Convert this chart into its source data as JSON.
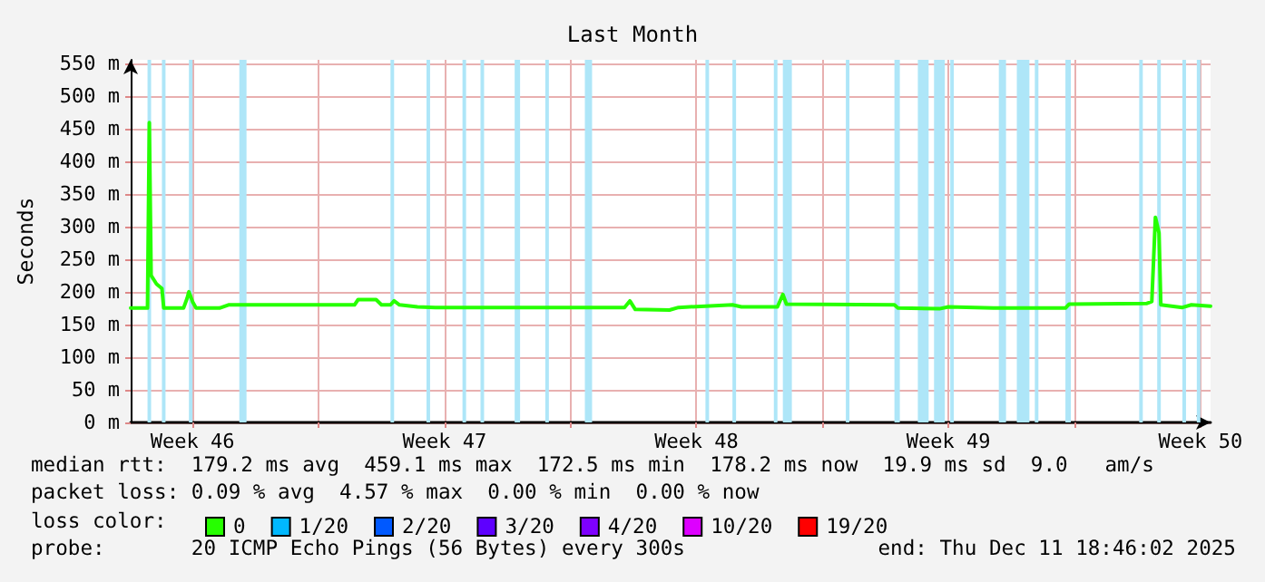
{
  "chart_data": {
    "type": "line",
    "title": "Last Month",
    "ylabel": "Seconds",
    "legend_title": "loss color:",
    "legend": "bottom",
    "grid": true,
    "xlim": [
      "2025-11-11T18:46",
      "2025-12-11T18:46"
    ],
    "xticks": [
      {
        "value": "2025-11-13T12:00",
        "label": "Week 46"
      },
      {
        "value": "2025-11-17T00:00",
        "label": null
      },
      {
        "value": "2025-11-20T12:00",
        "label": "Week 47"
      },
      {
        "value": "2025-11-24T00:00",
        "label": null
      },
      {
        "value": "2025-11-27T12:00",
        "label": "Week 48"
      },
      {
        "value": "2025-12-01T00:00",
        "label": null
      },
      {
        "value": "2025-12-04T12:00",
        "label": "Week 49"
      },
      {
        "value": "2025-12-08T00:00",
        "label": null
      },
      {
        "value": "2025-12-11T12:00",
        "label": "Week 50"
      }
    ],
    "ylim": [
      0,
      555
    ],
    "yticks": [
      {
        "value": 0,
        "label": "0 m"
      },
      {
        "value": 50,
        "label": "50 m"
      },
      {
        "value": 100,
        "label": "100 m"
      },
      {
        "value": 150,
        "label": "150 m"
      },
      {
        "value": 200,
        "label": "200 m"
      },
      {
        "value": 250,
        "label": "250 m"
      },
      {
        "value": 300,
        "label": "300 m"
      },
      {
        "value": 350,
        "label": "350 m"
      },
      {
        "value": 400,
        "label": "400 m"
      },
      {
        "value": 450,
        "label": "450 m"
      },
      {
        "value": 500,
        "label": "500 m"
      },
      {
        "value": 550,
        "label": "550 m"
      }
    ],
    "x": [
      "2025-11-11T18:46",
      "2025-11-12T06:00",
      "2025-11-12T07:12",
      "2025-11-12T08:24",
      "2025-11-12T12:00",
      "2025-11-12T15:36",
      "2025-11-12T16:48",
      "2025-11-13T06:00",
      "2025-11-13T08:24",
      "2025-11-13T09:36",
      "2025-11-13T12:00",
      "2025-11-13T14:24",
      "2025-11-14T06:00",
      "2025-11-14T12:00",
      "2025-11-18T00:00",
      "2025-11-18T02:24",
      "2025-11-18T14:24",
      "2025-11-18T18:00",
      "2025-11-19T00:00",
      "2025-11-19T02:24",
      "2025-11-19T06:00",
      "2025-11-19T18:00",
      "2025-11-20T06:00",
      "2025-11-25T12:00",
      "2025-11-25T15:36",
      "2025-11-25T19:12",
      "2025-11-26T18:00",
      "2025-11-27T00:00",
      "2025-11-27T18:00",
      "2025-11-28T12:00",
      "2025-11-28T18:00",
      "2025-11-29T18:00",
      "2025-11-29T21:36",
      "2025-11-30T00:00",
      "2025-12-03T00:00",
      "2025-12-03T02:24",
      "2025-12-04T06:00",
      "2025-12-04T12:00",
      "2025-12-05T18:00",
      "2025-12-07T18:00",
      "2025-12-07T20:24",
      "2025-12-10T00:00",
      "2025-12-10T03:36",
      "2025-12-10T06:00",
      "2025-12-10T08:24",
      "2025-12-10T09:36",
      "2025-12-11T00:00",
      "2025-12-11T06:00",
      "2025-12-11T18:46"
    ],
    "series": [
      {
        "name": "0",
        "color": "#26ff00",
        "values": [
          175,
          175,
          459,
          225,
          212,
          205,
          175,
          175,
          190,
          200,
          185,
          175,
          175,
          180,
          180,
          188,
          188,
          180,
          180,
          186,
          180,
          177,
          176,
          176,
          186,
          173,
          172,
          176,
          178,
          180,
          177,
          177,
          196,
          181,
          180,
          175,
          174,
          177,
          175,
          175,
          181,
          182,
          185,
          314,
          290,
          180,
          176,
          180,
          178
        ]
      },
      {
        "name": "1/20",
        "color": "#00b8ff",
        "values": [
          null,
          null,
          null,
          null,
          null,
          null,
          null,
          null,
          null,
          null,
          null,
          null,
          null,
          null,
          null,
          null,
          null,
          null,
          null,
          null,
          null,
          null,
          null,
          null,
          null,
          null,
          null,
          null,
          null,
          null,
          null,
          null,
          null,
          null,
          null,
          null,
          null,
          null,
          null,
          null,
          null,
          null,
          null,
          null,
          null,
          null,
          null,
          null,
          null
        ]
      },
      {
        "name": "2/20",
        "color": "#0059ff",
        "values": [
          null,
          null,
          null,
          null,
          null,
          null,
          null,
          null,
          null,
          null,
          null,
          null,
          null,
          null,
          null,
          null,
          null,
          null,
          null,
          null,
          null,
          null,
          null,
          null,
          null,
          null,
          null,
          null,
          null,
          null,
          null,
          null,
          null,
          null,
          null,
          null,
          null,
          null,
          null,
          null,
          null,
          null,
          null,
          null,
          null,
          null,
          null,
          null,
          null
        ]
      },
      {
        "name": "3/20",
        "color": "#5e00ff",
        "values": [
          null,
          null,
          null,
          null,
          null,
          null,
          null,
          null,
          null,
          null,
          null,
          null,
          null,
          null,
          null,
          null,
          null,
          null,
          null,
          null,
          null,
          null,
          null,
          null,
          null,
          null,
          null,
          null,
          null,
          null,
          null,
          null,
          null,
          null,
          null,
          null,
          null,
          null,
          null,
          null,
          null,
          null,
          null,
          null,
          null,
          null,
          null,
          null,
          null
        ]
      },
      {
        "name": "4/20",
        "color": "#7e00ff",
        "values": [
          null,
          null,
          null,
          null,
          null,
          null,
          null,
          null,
          null,
          null,
          null,
          null,
          null,
          null,
          null,
          null,
          null,
          null,
          null,
          null,
          null,
          null,
          null,
          null,
          null,
          null,
          null,
          null,
          null,
          null,
          null,
          null,
          null,
          null,
          null,
          null,
          null,
          null,
          null,
          null,
          null,
          null,
          null,
          null,
          null,
          null,
          null,
          null,
          null
        ]
      },
      {
        "name": "10/20",
        "color": "#dd00ff",
        "values": [
          null,
          null,
          null,
          null,
          null,
          null,
          null,
          null,
          null,
          null,
          null,
          null,
          null,
          null,
          null,
          null,
          null,
          null,
          null,
          null,
          null,
          null,
          null,
          null,
          null,
          null,
          null,
          null,
          null,
          null,
          null,
          null,
          null,
          null,
          null,
          null,
          null,
          null,
          null,
          null,
          null,
          null,
          null,
          null,
          null,
          null,
          null,
          null,
          null
        ]
      },
      {
        "name": "19/20",
        "color": "#ff0000",
        "values": [
          null,
          null,
          null,
          null,
          null,
          null,
          null,
          null,
          null,
          null,
          null,
          null,
          null,
          null,
          null,
          null,
          null,
          null,
          null,
          null,
          null,
          null,
          null,
          null,
          null,
          null,
          null,
          null,
          null,
          null,
          null,
          null,
          null,
          null,
          null,
          null,
          null,
          null,
          null,
          null,
          null,
          null,
          null,
          null,
          null,
          null,
          null,
          null,
          null
        ]
      }
    ],
    "bands": [
      {
        "axis": "x",
        "from": "2025-11-12T06:00",
        "to": "2025-11-12T08:24",
        "color": "#aee6f8"
      },
      {
        "axis": "x",
        "from": "2025-11-12T15:36",
        "to": "2025-11-12T18:00",
        "color": "#aee6f8"
      },
      {
        "axis": "x",
        "from": "2025-11-13T09:36",
        "to": "2025-11-13T12:00",
        "color": "#aee6f8"
      },
      {
        "axis": "x",
        "from": "2025-11-14T19:12",
        "to": "2025-11-15T00:00",
        "color": "#aee6f8"
      },
      {
        "axis": "x",
        "from": "2025-11-19T00:00",
        "to": "2025-11-19T02:24",
        "color": "#aee6f8"
      },
      {
        "axis": "x",
        "from": "2025-11-20T00:00",
        "to": "2025-11-20T02:24",
        "color": "#aee6f8"
      },
      {
        "axis": "x",
        "from": "2025-11-21T00:00",
        "to": "2025-11-21T02:24",
        "color": "#aee6f8"
      },
      {
        "axis": "x",
        "from": "2025-11-21T12:00",
        "to": "2025-11-21T14:24",
        "color": "#aee6f8"
      },
      {
        "axis": "x",
        "from": "2025-11-22T10:48",
        "to": "2025-11-22T14:24",
        "color": "#aee6f8"
      },
      {
        "axis": "x",
        "from": "2025-11-23T07:12",
        "to": "2025-11-23T09:36",
        "color": "#aee6f8"
      },
      {
        "axis": "x",
        "from": "2025-11-24T09:36",
        "to": "2025-11-24T14:24",
        "color": "#aee6f8"
      },
      {
        "axis": "x",
        "from": "2025-11-27T18:00",
        "to": "2025-11-27T20:24",
        "color": "#aee6f8"
      },
      {
        "axis": "x",
        "from": "2025-11-28T12:00",
        "to": "2025-11-28T14:24",
        "color": "#aee6f8"
      },
      {
        "axis": "x",
        "from": "2025-11-29T15:36",
        "to": "2025-11-29T18:00",
        "color": "#aee6f8"
      },
      {
        "axis": "x",
        "from": "2025-11-29T21:36",
        "to": "2025-11-30T03:36",
        "color": "#aee6f8"
      },
      {
        "axis": "x",
        "from": "2025-12-01T15:36",
        "to": "2025-12-01T18:00",
        "color": "#aee6f8"
      },
      {
        "axis": "x",
        "from": "2025-12-03T00:00",
        "to": "2025-12-03T03:36",
        "color": "#aee6f8"
      },
      {
        "axis": "x",
        "from": "2025-12-03T15:36",
        "to": "2025-12-03T22:48",
        "color": "#aee6f8"
      },
      {
        "axis": "x",
        "from": "2025-12-04T02:24",
        "to": "2025-12-04T09:36",
        "color": "#aee6f8"
      },
      {
        "axis": "x",
        "from": "2025-12-04T13:12",
        "to": "2025-12-04T15:36",
        "color": "#aee6f8"
      },
      {
        "axis": "x",
        "from": "2025-12-05T21:36",
        "to": "2025-12-06T02:24",
        "color": "#aee6f8"
      },
      {
        "axis": "x",
        "from": "2025-12-06T09:36",
        "to": "2025-12-06T18:00",
        "color": "#aee6f8"
      },
      {
        "axis": "x",
        "from": "2025-12-06T21:36",
        "to": "2025-12-07T00:00",
        "color": "#aee6f8"
      },
      {
        "axis": "x",
        "from": "2025-12-07T18:00",
        "to": "2025-12-07T21:36",
        "color": "#aee6f8"
      },
      {
        "axis": "x",
        "from": "2025-12-09T19:12",
        "to": "2025-12-09T21:36",
        "color": "#aee6f8"
      },
      {
        "axis": "x",
        "from": "2025-12-10T07:12",
        "to": "2025-12-10T09:36",
        "color": "#aee6f8"
      },
      {
        "axis": "x",
        "from": "2025-12-11T00:00",
        "to": "2025-12-11T02:24",
        "color": "#aee6f8"
      },
      {
        "axis": "x",
        "from": "2025-12-11T09:36",
        "to": "2025-12-11T12:00",
        "color": "#aee6f8"
      }
    ],
    "annotations": [
      "median rtt:  179.2 ms avg  459.1 ms max  172.5 ms min  178.2 ms now  19.9 ms sd  9.0   am/s",
      "packet loss: 0.09 % avg  4.57 % max  0.00 % min  0.00 % now",
      "probe:       20 ICMP Echo Pings (56 Bytes) every 300s",
      "end: Thu Dec 11 18:46:02 2025"
    ]
  }
}
